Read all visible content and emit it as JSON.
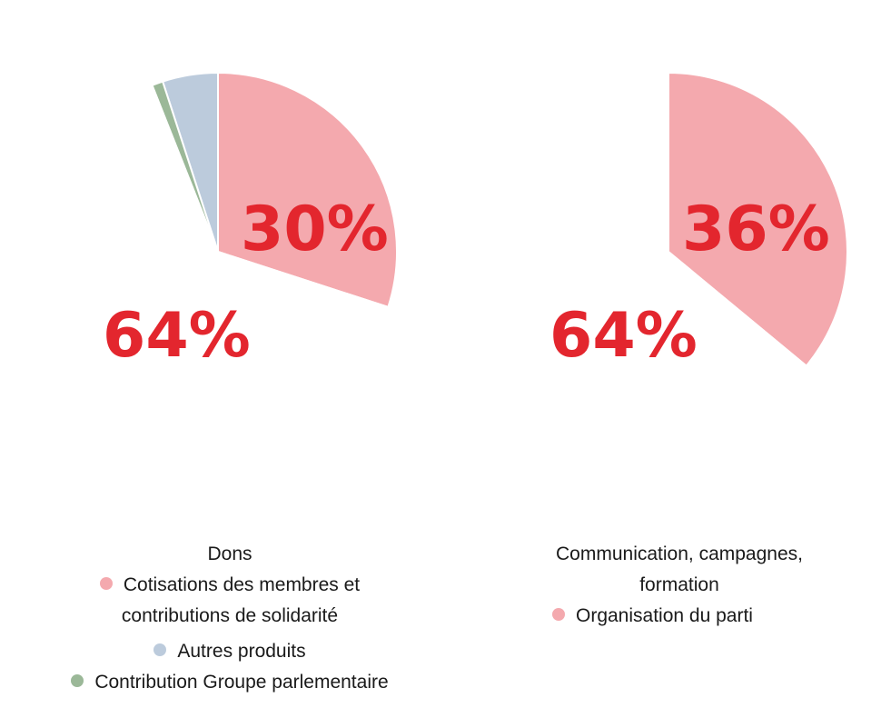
{
  "colors": {
    "pink": "#f4a9ae",
    "blue": "#bccbdc",
    "green": "#9bb898",
    "label_red": "#e3262e"
  },
  "chart_data": [
    {
      "type": "pie",
      "slices": [
        {
          "name": "Dons",
          "value": 64,
          "color": "#ffffff",
          "label": "64%"
        },
        {
          "name": "Cotisations des membres et contributions de solidarité",
          "value": 30,
          "color": "#f4a9ae",
          "label": "30%"
        },
        {
          "name": "Contribution Groupe parlementaire",
          "value": 1,
          "color": "#9bb898"
        },
        {
          "name": "Autres produits",
          "value": 5,
          "color": "#bccbdc"
        }
      ],
      "legend": {
        "title": "Dons",
        "items": [
          {
            "lines": [
              "Cotisations des membres et",
              "contributions de solidarité"
            ],
            "color": "#f4a9ae"
          },
          {
            "lines": [
              "Autres produits"
            ],
            "color": "#bccbdc"
          },
          {
            "lines": [
              "Contribution Groupe parlementaire"
            ],
            "color": "#9bb898"
          }
        ]
      }
    },
    {
      "type": "pie",
      "slices": [
        {
          "name": "Communication, campagnes, formation",
          "value": 64,
          "color": "#ffffff",
          "label": "64%"
        },
        {
          "name": "Organisation du parti",
          "value": 36,
          "color": "#f4a9ae",
          "label": "36%"
        }
      ],
      "legend": {
        "title_lines": [
          "Communication, campagnes,",
          "formation"
        ],
        "items": [
          {
            "lines": [
              "Organisation du parti"
            ],
            "color": "#f4a9ae"
          }
        ]
      }
    }
  ]
}
